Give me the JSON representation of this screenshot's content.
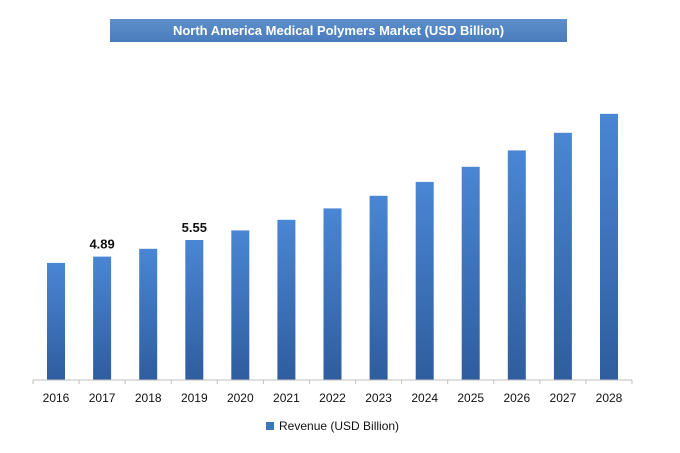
{
  "chart_data": {
    "type": "bar",
    "title": "North America Medical Polymers Market (USD Billion)",
    "categories": [
      "2016",
      "2017",
      "2018",
      "2019",
      "2020",
      "2021",
      "2022",
      "2023",
      "2024",
      "2025",
      "2026",
      "2027",
      "2028"
    ],
    "series": [
      {
        "name": "Revenue (USD Billion)",
        "values": [
          4.64,
          4.89,
          5.2,
          5.55,
          5.93,
          6.35,
          6.8,
          7.3,
          7.85,
          8.45,
          9.1,
          9.8,
          10.55
        ]
      }
    ],
    "data_labels": [
      {
        "category": "2017",
        "text": "4.89"
      },
      {
        "category": "2019",
        "text": "5.55"
      }
    ],
    "ylim": [
      0,
      10.9
    ],
    "grid": false,
    "legend": "bottom-center",
    "colors": {
      "bar_top": "#4a86d4",
      "bar_bottom": "#2f5d9e",
      "title_bg": "#5584c4"
    }
  }
}
